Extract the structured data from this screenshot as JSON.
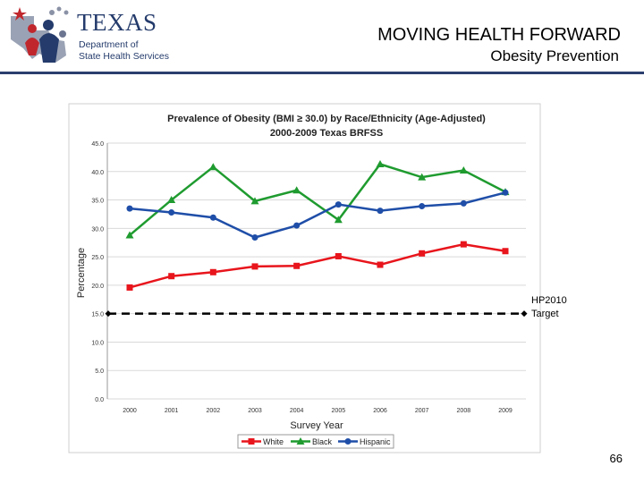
{
  "header": {
    "logo_word": "TEXAS",
    "logo_line1": "Department of",
    "logo_line2": "State Health Services",
    "title": "MOVING HEALTH FORWARD",
    "subtitle": "Obesity Prevention"
  },
  "page_number": "66",
  "colors": {
    "white_series": "#e8151c",
    "black_series": "#1f9b2f",
    "hispanic_series": "#1f4ea8",
    "header_rule": "#2b3e6e",
    "logo_blue": "#243b6b",
    "logo_red": "#c0272d"
  },
  "chart_data": {
    "type": "line",
    "title": "Prevalence of Obesity (BMI ≥ 30.0) by Race/Ethnicity (Age-Adjusted)",
    "subtitle": "2000-2009 Texas BRFSS",
    "xlabel": "Survey Year",
    "ylabel": "Percentage",
    "x": [
      "2000",
      "2001",
      "2002",
      "2003",
      "2004",
      "2005",
      "2006",
      "2007",
      "2008",
      "2009"
    ],
    "ylim": [
      0,
      45
    ],
    "yticks": [
      "0.0",
      "5.0",
      "10.0",
      "15.0",
      "20.0",
      "25.0",
      "30.0",
      "35.0",
      "40.0",
      "45.0"
    ],
    "grid": true,
    "legend_position": "bottom",
    "series": [
      {
        "name": "White",
        "marker": "square",
        "values": [
          19.6,
          21.6,
          22.3,
          23.3,
          23.4,
          25.1,
          23.6,
          25.6,
          27.2,
          26.0
        ]
      },
      {
        "name": "Black",
        "marker": "triangle",
        "values": [
          28.8,
          35.0,
          40.8,
          34.8,
          36.7,
          31.5,
          41.3,
          39.0,
          40.2,
          36.4
        ]
      },
      {
        "name": "Hispanic",
        "marker": "circle",
        "values": [
          33.5,
          32.8,
          31.9,
          28.4,
          30.5,
          34.2,
          33.1,
          33.9,
          34.4,
          36.3
        ]
      }
    ],
    "target": {
      "value": 15.0,
      "label_line1": "HP2010",
      "label_line2": "Target"
    }
  }
}
